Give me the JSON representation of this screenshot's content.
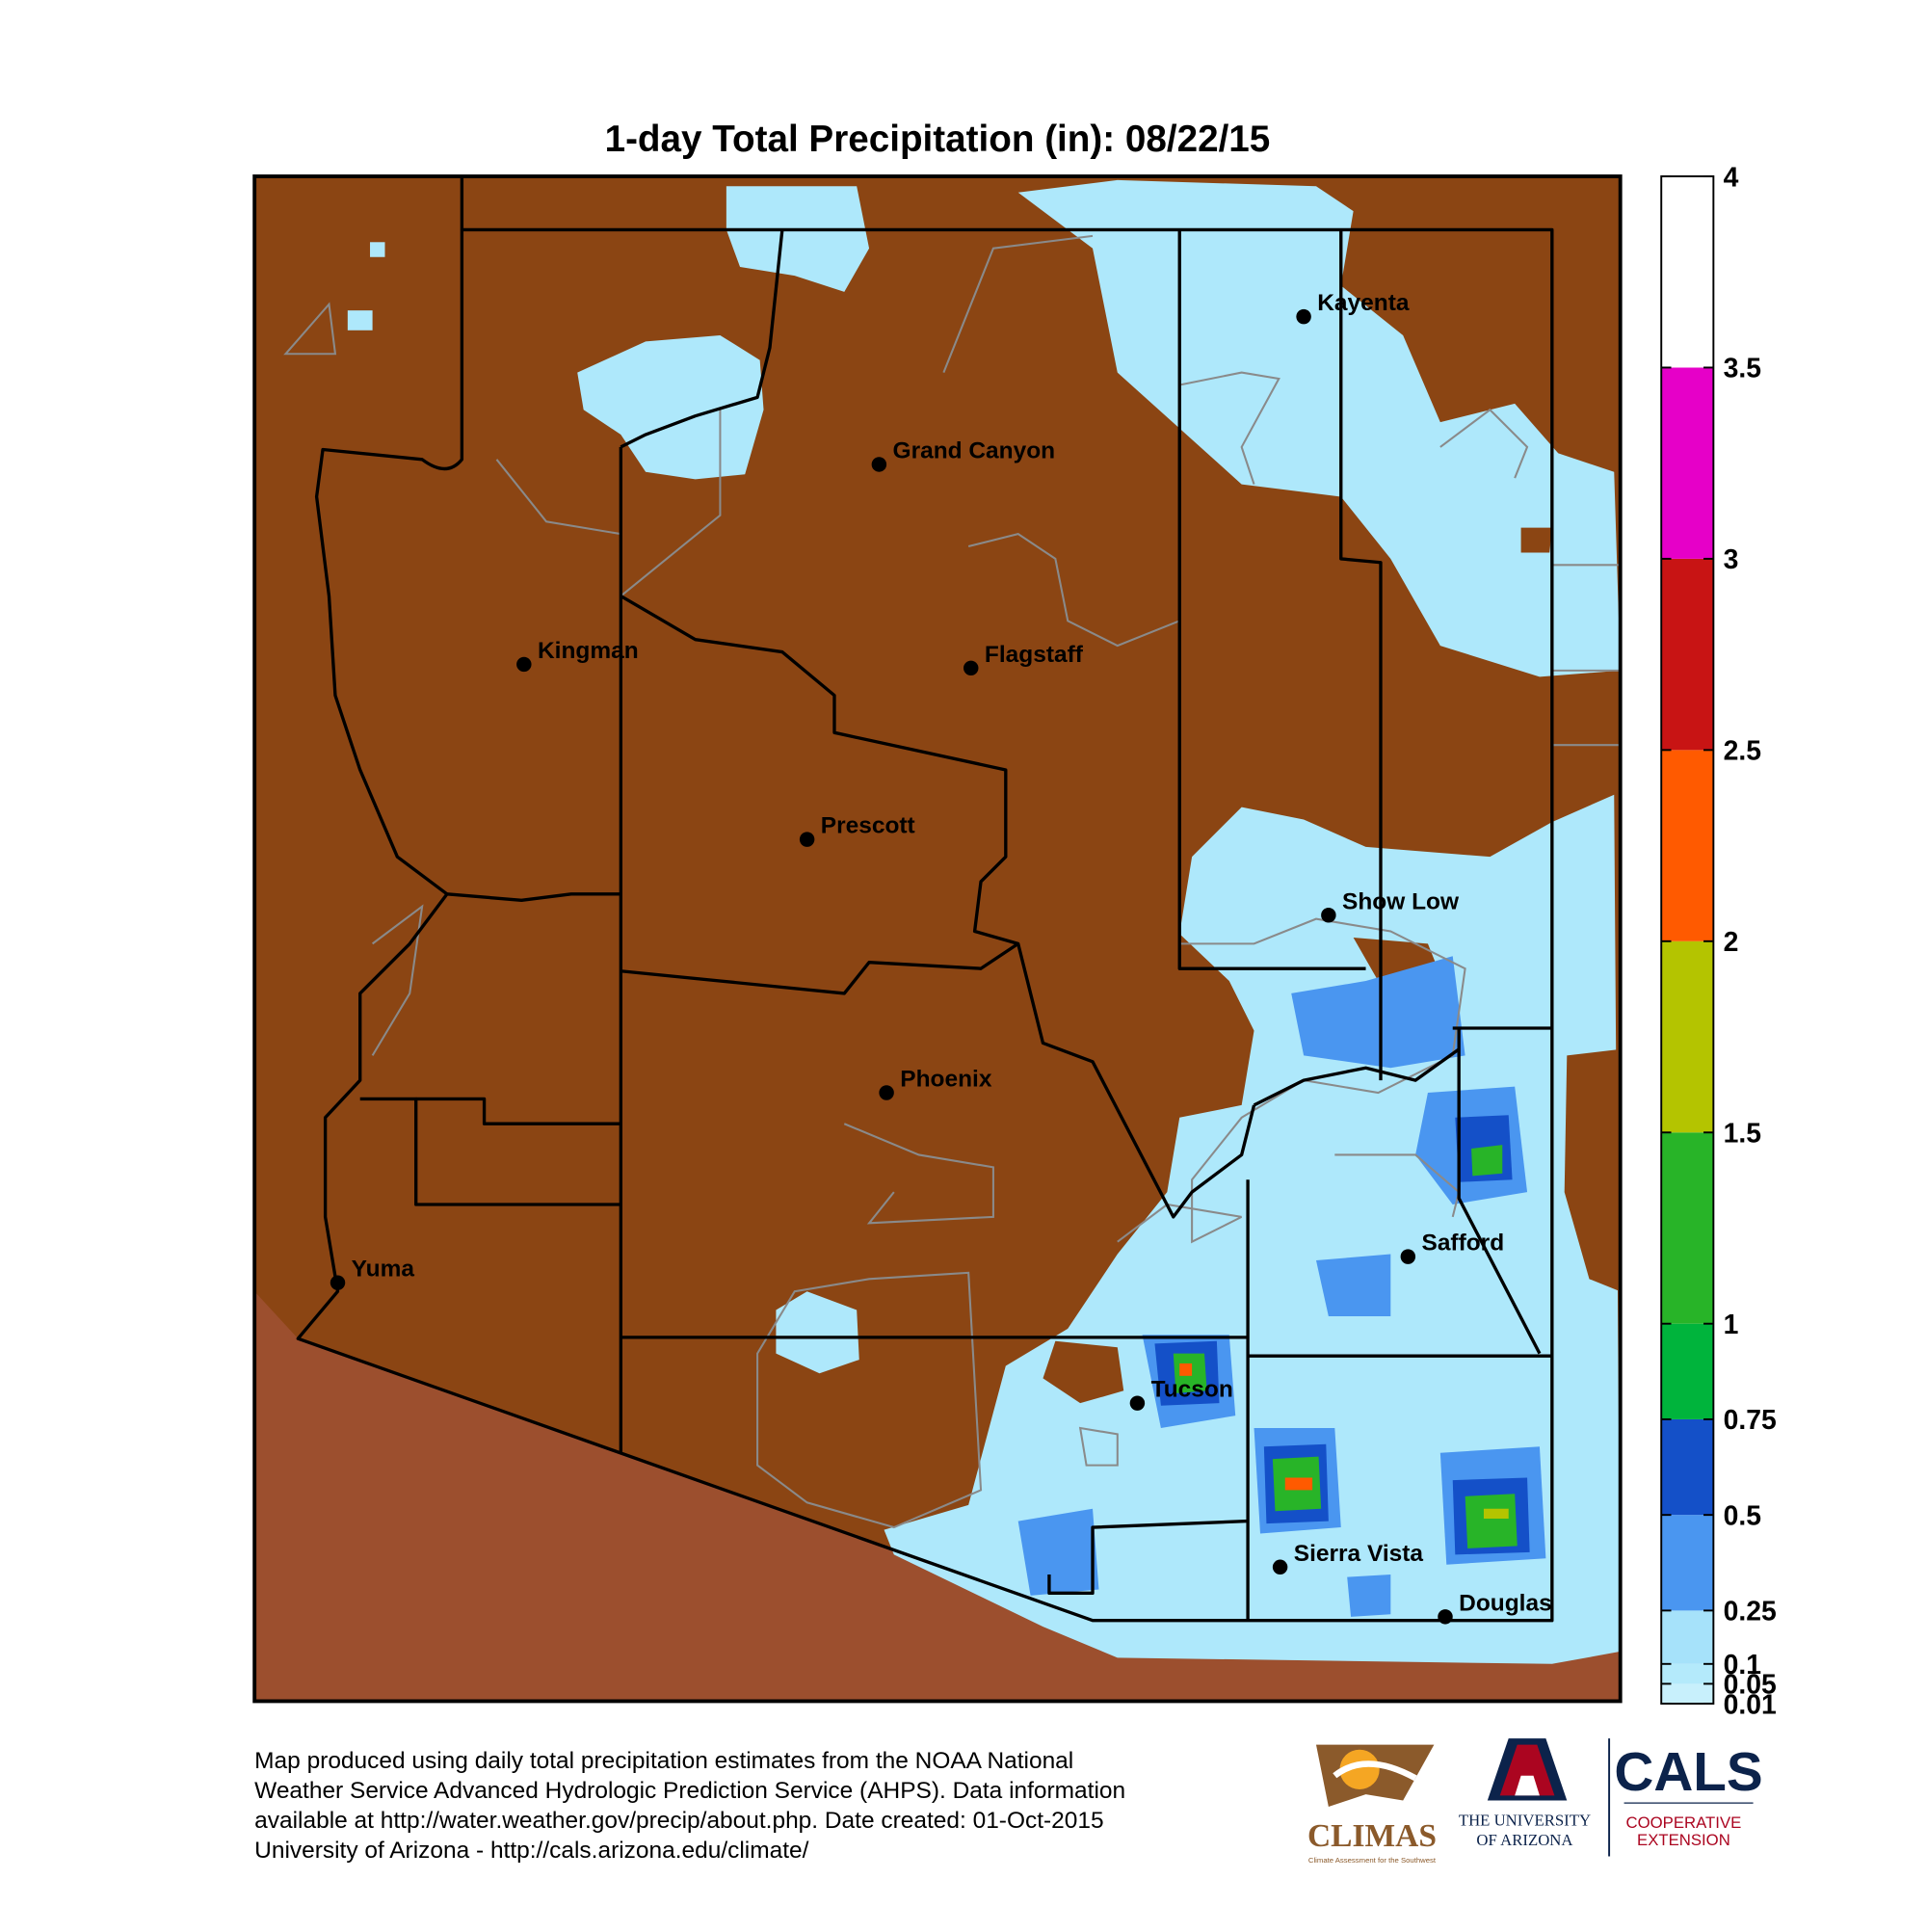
{
  "title": "1-day Total Precipitation (in): 08/22/15",
  "cities": [
    {
      "name": "Kayenta"
    },
    {
      "name": "Grand Canyon"
    },
    {
      "name": "Kingman"
    },
    {
      "name": "Flagstaff"
    },
    {
      "name": "Prescott"
    },
    {
      "name": "Show Low"
    },
    {
      "name": "Phoenix"
    },
    {
      "name": "Safford"
    },
    {
      "name": "Yuma"
    },
    {
      "name": "Tucson"
    },
    {
      "name": "Sierra Vista"
    },
    {
      "name": "Douglas"
    }
  ],
  "legend": {
    "ticks": [
      0.01,
      0.05,
      0.1,
      0.25,
      0.5,
      0.75,
      1,
      1.5,
      2,
      2.5,
      3,
      3.5,
      4
    ],
    "colors": [
      "#c8f0fc",
      "#b4eafb",
      "#a6e2fa",
      "#4a96f0",
      "#1450c8",
      "#00b43c",
      "#28b428",
      "#b4c400",
      "#ff5a00",
      "#c81414",
      "#e600c8",
      "#ffffff"
    ]
  },
  "footer": [
    "Map produced using daily total precipitation estimates from the NOAA National",
    "Weather Service Advanced Hydrologic Prediction Service (AHPS). Data information",
    "available at http://water.weather.gov/precip/about.php. Date created: 01-Oct-2015",
    "University of Arizona - http://cals.arizona.edu/climate/"
  ],
  "logos": {
    "climas": "CLIMAS",
    "climas_sub": "Climate Assessment for the Southwest",
    "ua_line1": "THE UNIVERSITY",
    "ua_line2": "OF ARIZONA",
    "cals": "CALS",
    "cals_line1": "COOPERATIVE",
    "cals_line2": "EXTENSION"
  }
}
